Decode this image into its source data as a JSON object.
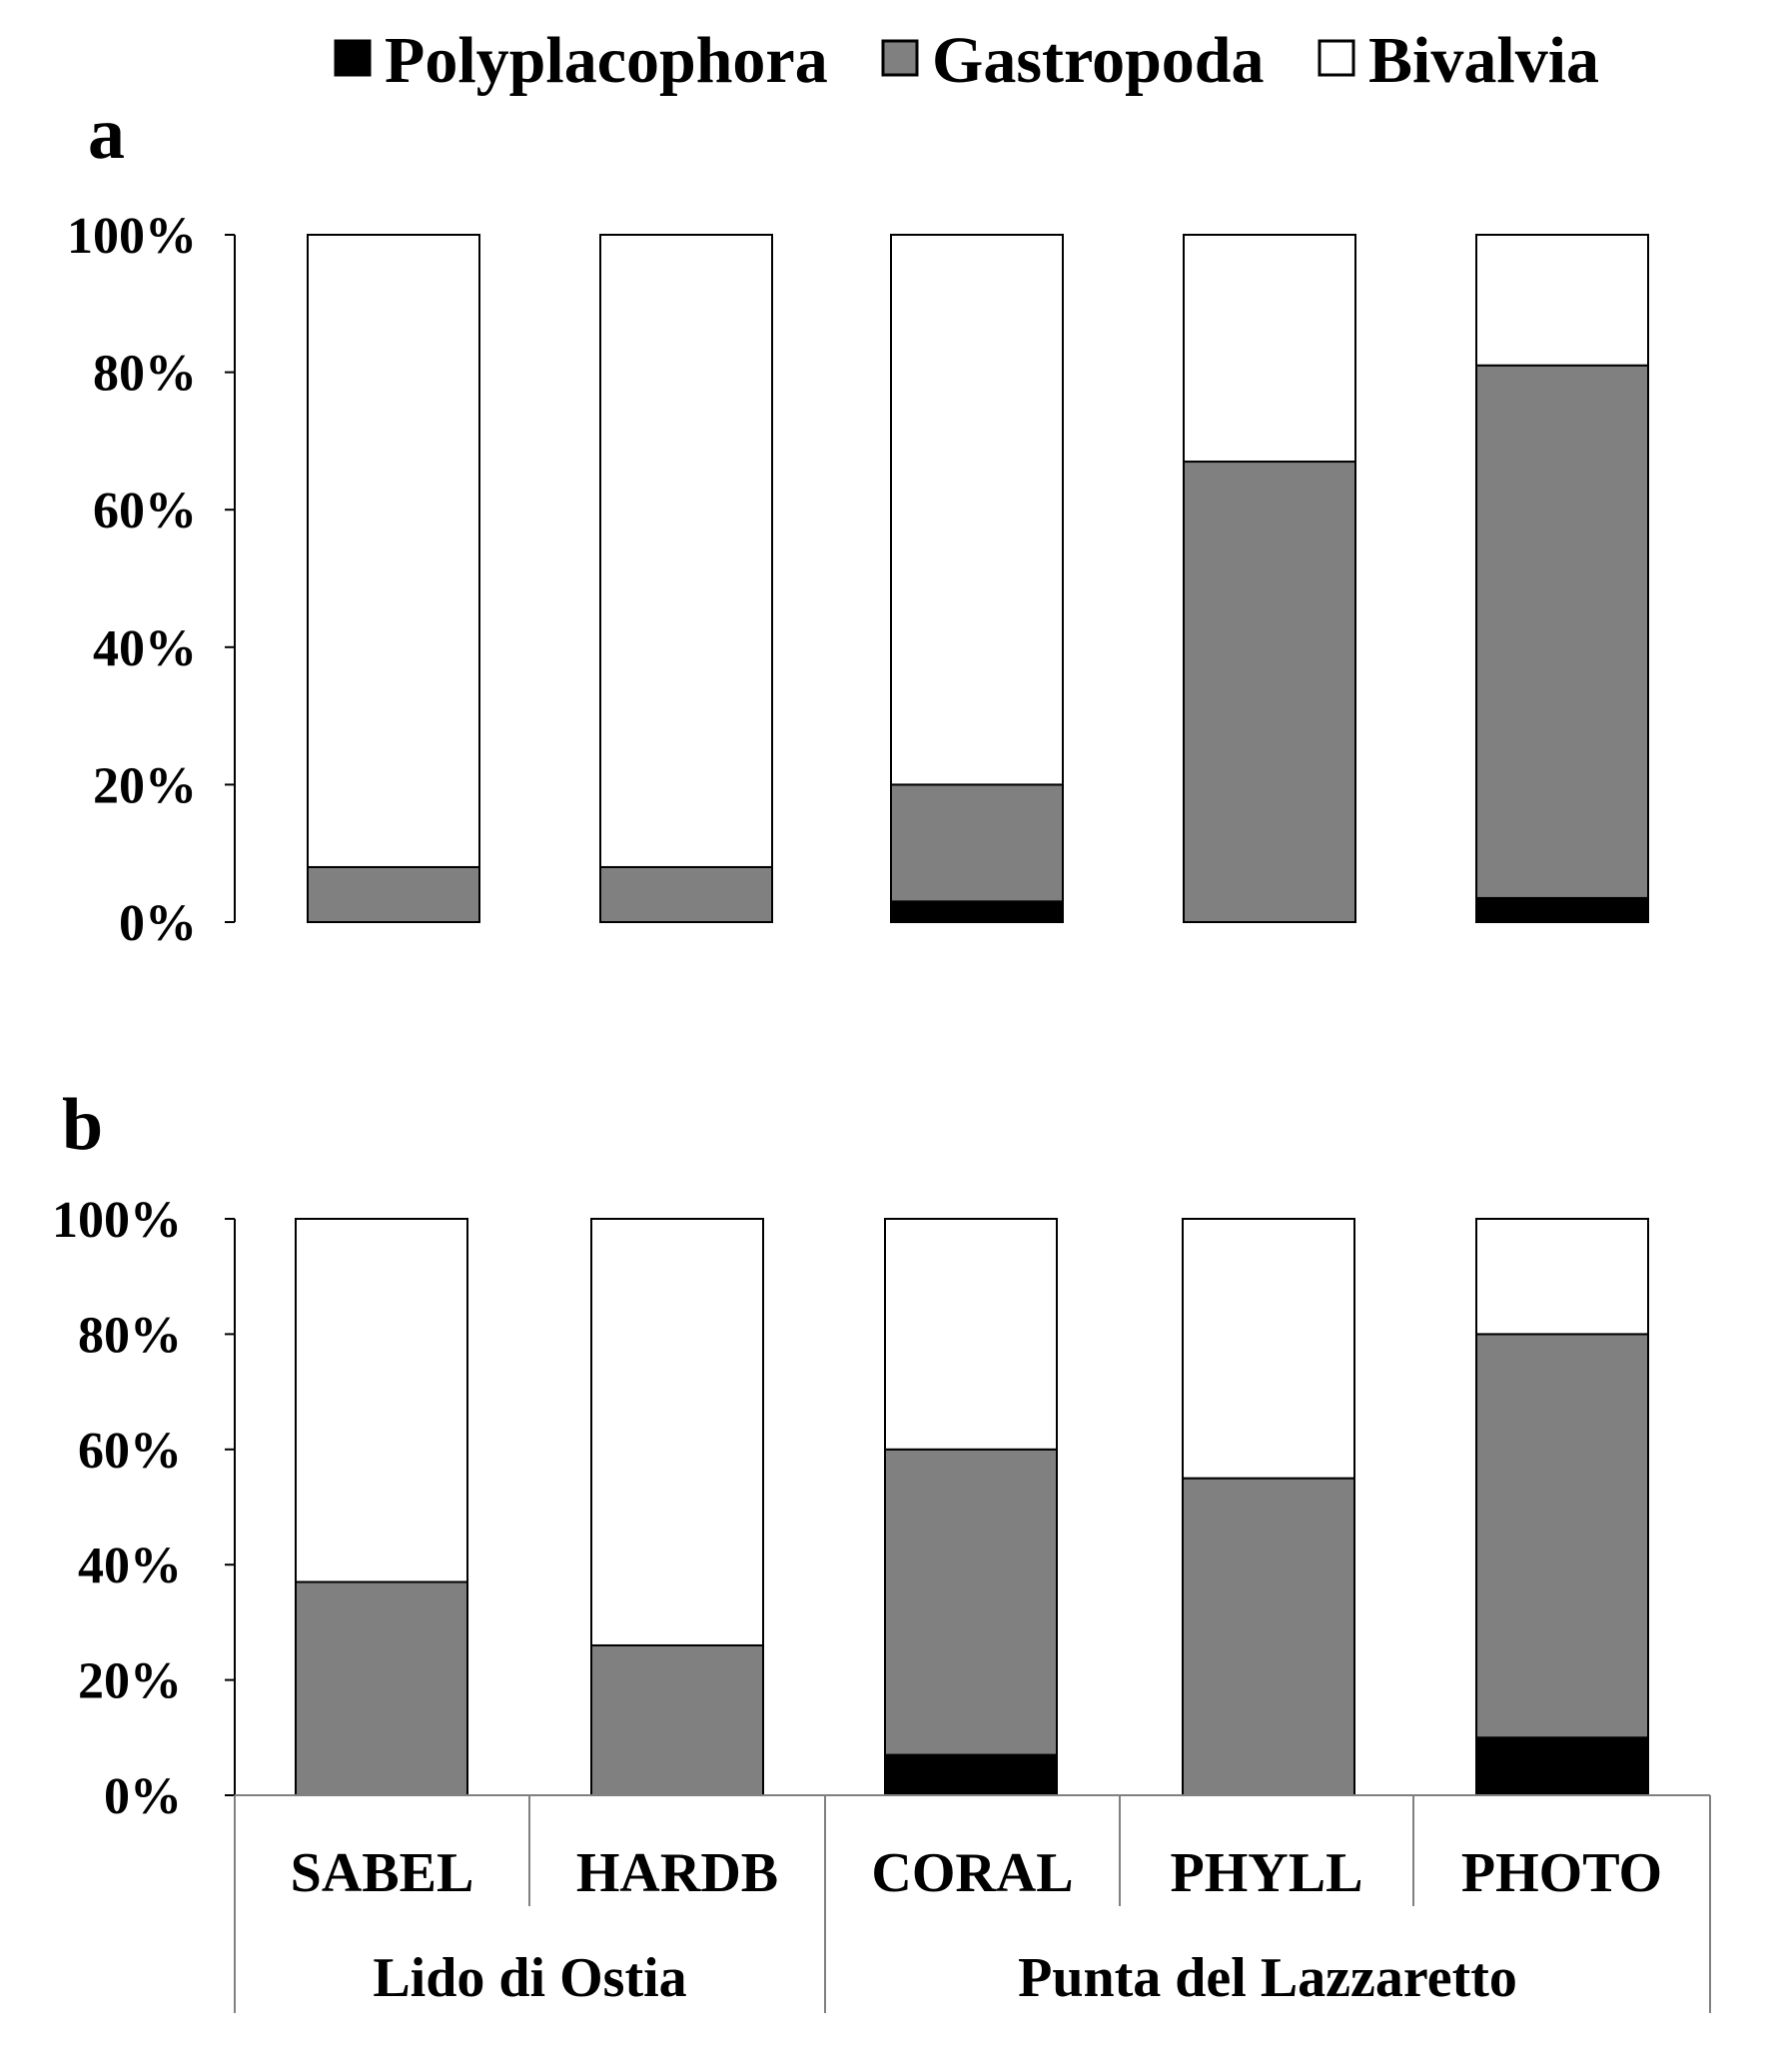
{
  "chart_data": [
    {
      "type": "bar",
      "stacked": true,
      "panel_label": "a",
      "categories": [
        "SABEL",
        "HARDB",
        "CORAL",
        "PHYLL",
        "PHOTO"
      ],
      "series": [
        {
          "name": "Polyplacophora",
          "values": [
            0,
            0,
            3,
            0,
            3.5
          ]
        },
        {
          "name": "Gastropoda",
          "values": [
            8,
            8,
            17,
            67,
            77.5
          ]
        },
        {
          "name": "Bivalvia",
          "values": [
            92,
            92,
            80,
            33,
            19
          ]
        }
      ],
      "colors": {
        "Polyplacophora": "#000000",
        "Gastropoda": "#808080",
        "Bivalvia": "#ffffff"
      },
      "yticks": [
        "0%",
        "20%",
        "40%",
        "60%",
        "80%",
        "100%"
      ],
      "ylim": [
        0,
        100
      ],
      "legend_position": "top"
    },
    {
      "type": "bar",
      "stacked": true,
      "panel_label": "b",
      "categories": [
        "SABEL",
        "HARDB",
        "CORAL",
        "PHYLL",
        "PHOTO"
      ],
      "groups": [
        {
          "label": "Lido di Ostia",
          "categories": [
            "SABEL",
            "HARDB"
          ]
        },
        {
          "label": "Punta del Lazzaretto",
          "categories": [
            "CORAL",
            "PHYLL",
            "PHOTO"
          ]
        }
      ],
      "series": [
        {
          "name": "Polyplacophora",
          "values": [
            0,
            0,
            7,
            0,
            10
          ]
        },
        {
          "name": "Gastropoda",
          "values": [
            37,
            26,
            53,
            55,
            70
          ]
        },
        {
          "name": "Bivalvia",
          "values": [
            63,
            74,
            40,
            45,
            20
          ]
        }
      ],
      "colors": {
        "Polyplacophora": "#000000",
        "Gastropoda": "#808080",
        "Bivalvia": "#ffffff"
      },
      "yticks": [
        "0%",
        "20%",
        "40%",
        "60%",
        "80%",
        "100%"
      ],
      "ylim": [
        0,
        100
      ]
    }
  ],
  "legend": {
    "items": [
      {
        "label": "Polyplacophora",
        "color": "#000000"
      },
      {
        "label": "Gastropoda",
        "color": "#808080"
      },
      {
        "label": "Bivalvia",
        "color": "#ffffff"
      }
    ]
  }
}
